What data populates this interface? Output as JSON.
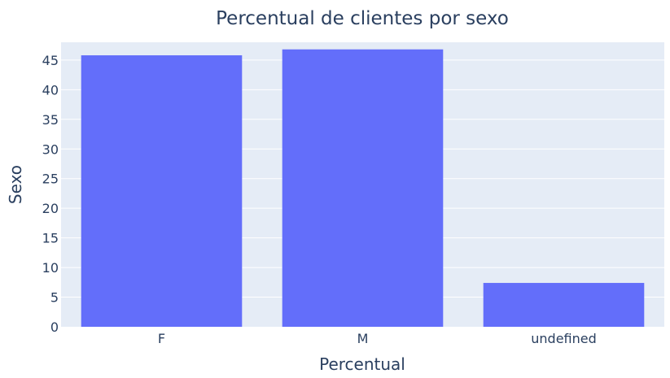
{
  "chart_data": {
    "type": "bar",
    "title": "Percentual de clientes por sexo",
    "xlabel": "Percentual",
    "ylabel": "Sexo",
    "categories": [
      "F",
      "M",
      "undefined"
    ],
    "values": [
      45.8,
      46.8,
      7.4
    ],
    "ylim": [
      0,
      48
    ],
    "yticks": [
      0,
      5,
      10,
      15,
      20,
      25,
      30,
      35,
      40,
      45
    ],
    "grid": true,
    "colors": {
      "bar": "#636efa",
      "plot_bg": "#e5ecf6",
      "grid": "#ffffff",
      "text": "#2a3f5f"
    }
  }
}
